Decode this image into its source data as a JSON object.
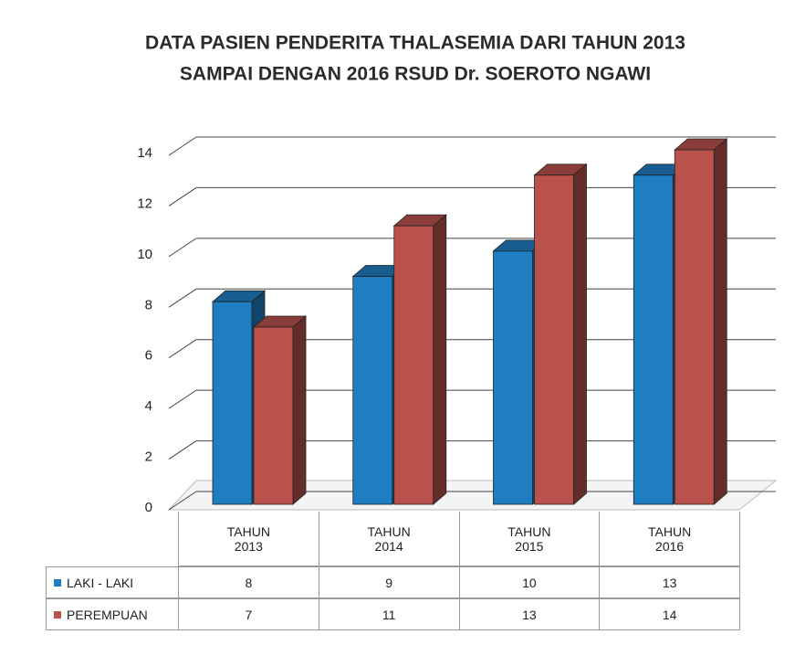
{
  "chart_data": {
    "type": "bar",
    "title": [
      "DATA PASIEN PENDERITA THALASEMIA DARI TAHUN 2013",
      "SAMPAI DENGAN 2016 RSUD Dr. SOEROTO NGAWI"
    ],
    "categories": [
      "TAHUN 2013",
      "TAHUN 2014",
      "TAHUN 2015",
      "TAHUN 2016"
    ],
    "series": [
      {
        "name": "LAKI - LAKI",
        "color": "#1f7dc1",
        "values": [
          8,
          9,
          10,
          13
        ]
      },
      {
        "name": "PEREMPUAN",
        "color": "#b9524c",
        "values": [
          7,
          11,
          13,
          14
        ]
      }
    ],
    "ylim": [
      0,
      14
    ],
    "yticks": [
      0,
      2,
      4,
      6,
      8,
      10,
      12,
      14
    ],
    "grid": true
  }
}
